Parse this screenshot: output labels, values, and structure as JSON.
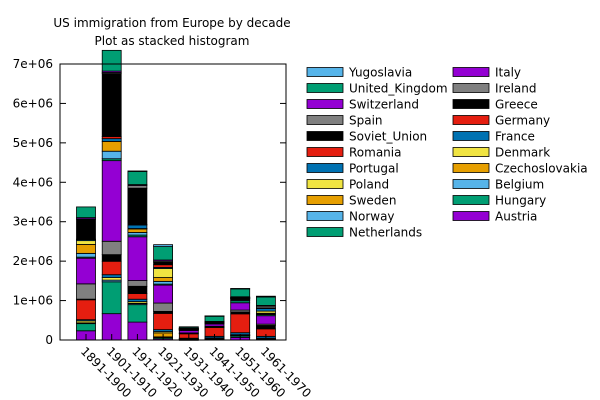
{
  "chart_data": {
    "type": "bar",
    "stacked": true,
    "title": [
      "US immigration from Europe by decade",
      "Plot as stacked histogram"
    ],
    "xlabel": "",
    "ylabel": "",
    "ylim": [
      0,
      7000000
    ],
    "yticks": [
      0,
      1000000,
      2000000,
      3000000,
      4000000,
      5000000,
      6000000,
      7000000
    ],
    "ytick_labels": [
      "0",
      "1e+06",
      "2e+06",
      "3e+06",
      "4e+06",
      "5e+06",
      "6e+06",
      "7e+06"
    ],
    "grid": false,
    "legend_position": "right",
    "categories": [
      "1891-1900",
      "1901-1910",
      "1911-1920",
      "1921-1930",
      "1931-1940",
      "1941-1950",
      "1951-1960",
      "1961-1970"
    ],
    "series": [
      {
        "name": "Austria",
        "color": "#9400d3",
        "values": [
          234000,
          668000,
          454000,
          32000,
          3500,
          24900,
          67100,
          20600
        ]
      },
      {
        "name": "Hungary",
        "color": "#009e73",
        "values": [
          181000,
          808000,
          442000,
          31000,
          7900,
          3500,
          36600,
          5400
        ]
      },
      {
        "name": "Belgium",
        "color": "#56b4e9",
        "values": [
          20000,
          42000,
          33000,
          16000,
          4800,
          12200,
          18600,
          9200
        ]
      },
      {
        "name": "Czechoslovakia",
        "color": "#e69f00",
        "values": [
          0,
          0,
          3400,
          102000,
          14000,
          8300,
          919,
          3300
        ]
      },
      {
        "name": "Denmark",
        "color": "#f0e442",
        "values": [
          50000,
          65000,
          41000,
          32000,
          2600,
          5400,
          10900,
          9200
        ]
      },
      {
        "name": "France",
        "color": "#0072b2",
        "values": [
          30000,
          73000,
          61000,
          50000,
          12600,
          38800,
          51100,
          45200
        ]
      },
      {
        "name": "Germany",
        "color": "#e51e10",
        "values": [
          505000,
          341000,
          144000,
          412000,
          114000,
          227000,
          478000,
          190000
        ]
      },
      {
        "name": "Greece",
        "color": "#000000",
        "values": [
          16000,
          168000,
          184000,
          51000,
          9100,
          8900,
          47600,
          85900
        ]
      },
      {
        "name": "Ireland",
        "color": "#808080",
        "values": [
          388000,
          339000,
          146000,
          211000,
          10900,
          19800,
          48400,
          33000
        ]
      },
      {
        "name": "Italy",
        "color": "#9400d3",
        "values": [
          651000,
          2045000,
          1110000,
          455000,
          68000,
          57700,
          185000,
          214000
        ]
      },
      {
        "name": "Netherlands",
        "color": "#009e73",
        "values": [
          27000,
          48000,
          43000,
          26000,
          7200,
          14900,
          52300,
          30600
        ]
      },
      {
        "name": "Norway",
        "color": "#56b4e9",
        "values": [
          95000,
          191000,
          66000,
          69000,
          4700,
          10100,
          22900,
          15500
        ]
      },
      {
        "name": "Sweden",
        "color": "#e69f00",
        "values": [
          226000,
          249000,
          95000,
          97000,
          3900,
          10700,
          21700,
          17100
        ]
      },
      {
        "name": "Poland",
        "color": "#f0e442",
        "values": [
          97000,
          0,
          4800,
          228000,
          17000,
          7600,
          9900,
          53500
        ]
      },
      {
        "name": "Portugal",
        "color": "#0072b2",
        "values": [
          27000,
          70000,
          89000,
          29000,
          3300,
          7400,
          19600,
          76100
        ]
      },
      {
        "name": "Romania",
        "color": "#e51e10",
        "values": [
          12000,
          53000,
          13000,
          68000,
          3900,
          1100,
          1000,
          2500
        ]
      },
      {
        "name": "Soviet_Union",
        "color": "#000000",
        "values": [
          505000,
          1597000,
          921000,
          62000,
          1400,
          600,
          500,
          2500
        ]
      },
      {
        "name": "Spain",
        "color": "#808080",
        "values": [
          8000,
          28000,
          69000,
          28000,
          3300,
          2100,
          6900,
          44700
        ]
      },
      {
        "name": "Switzerland",
        "color": "#9400d3",
        "values": [
          32000,
          35000,
          23000,
          30000,
          5500,
          10500,
          17600,
          18500
        ]
      },
      {
        "name": "United_Kingdom",
        "color": "#009e73",
        "values": [
          271000,
          526000,
          341000,
          340000,
          31600,
          139000,
          202000,
          214000
        ]
      },
      {
        "name": "Yugoslavia",
        "color": "#56b4e9",
        "values": [
          0,
          0,
          1900,
          49000,
          5800,
          1600,
          8200,
          20400
        ]
      }
    ]
  }
}
